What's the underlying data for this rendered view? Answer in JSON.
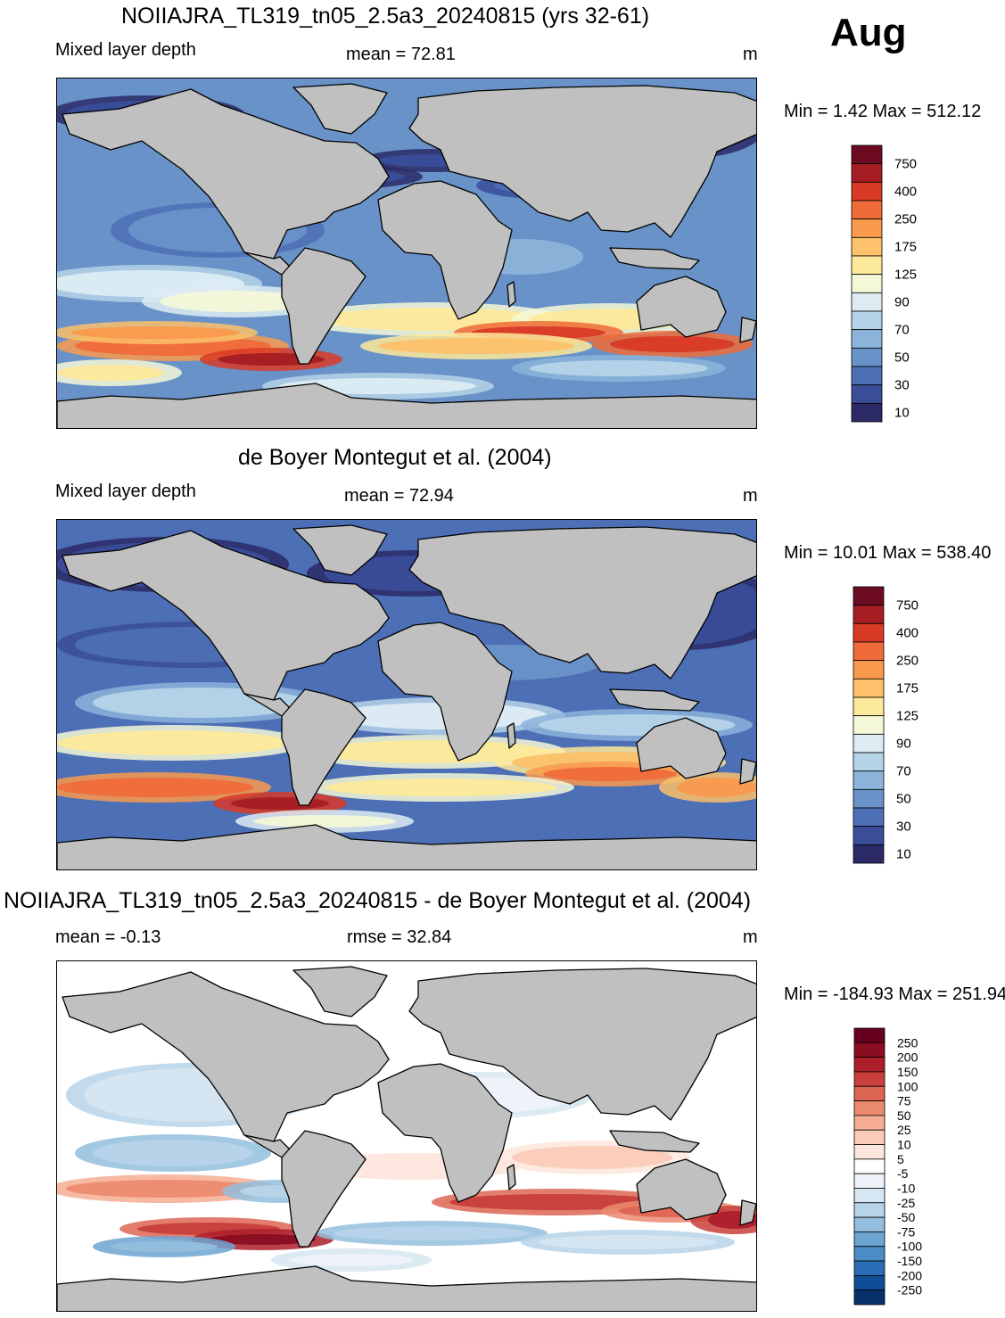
{
  "month": "Aug",
  "colors": {
    "land": "#c0c0c0",
    "coast": "#000000",
    "mld_scale": [
      "#2b2a66",
      "#3a4d99",
      "#4d6fb5",
      "#6892c8",
      "#8cb4da",
      "#b6d4e8",
      "#ddecf3",
      "#f4f8d8",
      "#fde99a",
      "#fcc16a",
      "#f99a4e",
      "#ef6b3a",
      "#d93a26",
      "#a51d22",
      "#6b0a20"
    ],
    "diff_scale": [
      "#08306b",
      "#0f4d96",
      "#2a6db6",
      "#4b8cc6",
      "#6da5d2",
      "#93bedd",
      "#b7d4e9",
      "#d6e6f2",
      "#edf3f9",
      "#ffffff",
      "#fde6dc",
      "#fbccb8",
      "#f7ad93",
      "#ec8a70",
      "#dd6553",
      "#c83f3c",
      "#ad1f2b",
      "#8a0d21",
      "#67001f"
    ]
  },
  "panels": [
    {
      "title": "NOIIAJRA_TL319_tn05_2.5a3_20240815 (yrs 32-61)",
      "left_label": "Mixed layer depth",
      "center_label": "mean =  72.81",
      "units": "m",
      "minmax": "Min =    1.42 Max = 512.12",
      "colorbar_labels": [
        "750",
        "400",
        "250",
        "175",
        "125",
        "90",
        "70",
        "50",
        "30",
        "10"
      ]
    },
    {
      "title": "de Boyer Montegut et al. (2004)",
      "left_label": "Mixed layer depth",
      "center_label": "mean =  72.94",
      "units": "m",
      "minmax": "Min =  10.01 Max = 538.40",
      "colorbar_labels": [
        "750",
        "400",
        "250",
        "175",
        "125",
        "90",
        "70",
        "50",
        "30",
        "10"
      ]
    },
    {
      "title": "NOIIAJRA_TL319_tn05_2.5a3_20240815 - de Boyer Montegut et al. (2004)",
      "left_label": "mean =  -0.13",
      "center_label": "rmse =  32.84",
      "units": "m",
      "minmax": "Min = -184.93 Max = 251.94",
      "colorbar_labels": [
        "250",
        "200",
        "150",
        "100",
        "75",
        "50",
        "25",
        "10",
        "5",
        "-5",
        "-10",
        "-25",
        "-50",
        "-75",
        "-100",
        "-150",
        "-200",
        "-250"
      ]
    }
  ]
}
